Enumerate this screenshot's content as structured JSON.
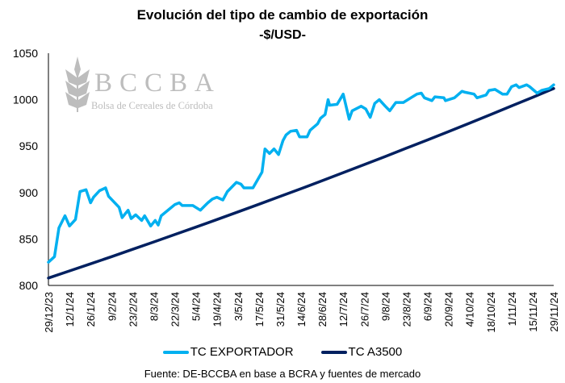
{
  "chart_data": {
    "type": "line",
    "title": "Evolución del tipo de cambio de exportación",
    "subtitle": "-$/USD-",
    "xlabel": "",
    "ylabel": "",
    "ylim": [
      800,
      1050
    ],
    "yticks": [
      800,
      850,
      900,
      950,
      1000,
      1050
    ],
    "xlim_days": [
      0,
      336
    ],
    "x_tick_labels": [
      "29/12/23",
      "12/1/24",
      "26/1/24",
      "9/2/24",
      "23/2/24",
      "8/3/24",
      "22/3/24",
      "5/4/24",
      "19/4/24",
      "3/5/24",
      "17/5/24",
      "31/5/24",
      "14/6/24",
      "28/6/24",
      "12/7/24",
      "26/7/24",
      "9/8/24",
      "23/8/24",
      "6/9/24",
      "20/9/24",
      "4/10/24",
      "18/10/24",
      "1/11/24",
      "15/11/24",
      "29/11/24"
    ],
    "x_unit": "days since 29/12/23",
    "grid": false,
    "legend_position": "bottom",
    "series": [
      {
        "name": "TC EXPORTADOR",
        "color": "#00B0F0",
        "points": [
          [
            0,
            825
          ],
          [
            4,
            831
          ],
          [
            7,
            862
          ],
          [
            11,
            875
          ],
          [
            14,
            864
          ],
          [
            18,
            871
          ],
          [
            21,
            901
          ],
          [
            25,
            903
          ],
          [
            28,
            889
          ],
          [
            30,
            895
          ],
          [
            34,
            902
          ],
          [
            38,
            905
          ],
          [
            40,
            896
          ],
          [
            47,
            884
          ],
          [
            49,
            873
          ],
          [
            53,
            881
          ],
          [
            55,
            872
          ],
          [
            58,
            876
          ],
          [
            62,
            870
          ],
          [
            64,
            875
          ],
          [
            68,
            864
          ],
          [
            71,
            870
          ],
          [
            73,
            865
          ],
          [
            75,
            875
          ],
          [
            84,
            887
          ],
          [
            87,
            889
          ],
          [
            89,
            886
          ],
          [
            96,
            886
          ],
          [
            101,
            881
          ],
          [
            106,
            889
          ],
          [
            109,
            893
          ],
          [
            112,
            895
          ],
          [
            116,
            892
          ],
          [
            119,
            901
          ],
          [
            125,
            911
          ],
          [
            128,
            909
          ],
          [
            130,
            905
          ],
          [
            136,
            905
          ],
          [
            142,
            922
          ],
          [
            144,
            947
          ],
          [
            147,
            942
          ],
          [
            150,
            947
          ],
          [
            153,
            941
          ],
          [
            156,
            956
          ],
          [
            158,
            962
          ],
          [
            161,
            966
          ],
          [
            165,
            967
          ],
          [
            167,
            960
          ],
          [
            172,
            960
          ],
          [
            174,
            967
          ],
          [
            179,
            974
          ],
          [
            181,
            980
          ],
          [
            184,
            984
          ],
          [
            186,
            1000
          ],
          [
            187,
            994
          ],
          [
            192,
            995
          ],
          [
            196,
            1006
          ],
          [
            200,
            979
          ],
          [
            202,
            988
          ],
          [
            208,
            993
          ],
          [
            211,
            990
          ],
          [
            214,
            981
          ],
          [
            217,
            996
          ],
          [
            220,
            1000
          ],
          [
            224,
            993
          ],
          [
            227,
            988
          ],
          [
            231,
            997
          ],
          [
            236,
            997
          ],
          [
            241,
            1002
          ],
          [
            245,
            1006
          ],
          [
            248,
            1007
          ],
          [
            250,
            1002
          ],
          [
            255,
            999
          ],
          [
            257,
            1003
          ],
          [
            263,
            1002
          ],
          [
            264,
            999
          ],
          [
            270,
            1002
          ],
          [
            275,
            1009
          ],
          [
            277,
            1008
          ],
          [
            283,
            1006
          ],
          [
            285,
            1002
          ],
          [
            291,
            1005
          ],
          [
            293,
            1010
          ],
          [
            297,
            1011
          ],
          [
            302,
            1006
          ],
          [
            305,
            1006
          ],
          [
            308,
            1014
          ],
          [
            311,
            1016
          ],
          [
            313,
            1013
          ],
          [
            318,
            1016
          ],
          [
            320,
            1014
          ],
          [
            325,
            1007
          ],
          [
            328,
            1010
          ],
          [
            333,
            1012
          ],
          [
            336,
            1016
          ]
        ]
      },
      {
        "name": "TC A3500",
        "color": "#002060",
        "points": [
          [
            0,
            808.0
          ],
          [
            14,
            815.6
          ],
          [
            28,
            823.3
          ],
          [
            42,
            831.0
          ],
          [
            56,
            838.9
          ],
          [
            70,
            846.8
          ],
          [
            84,
            854.8
          ],
          [
            98,
            862.8
          ],
          [
            112,
            870.9
          ],
          [
            126,
            879.2
          ],
          [
            140,
            887.4
          ],
          [
            154,
            895.8
          ],
          [
            168,
            904.2
          ],
          [
            182,
            912.8
          ],
          [
            196,
            921.4
          ],
          [
            210,
            930.1
          ],
          [
            224,
            938.8
          ],
          [
            238,
            947.7
          ],
          [
            252,
            956.6
          ],
          [
            266,
            965.6
          ],
          [
            280,
            974.7
          ],
          [
            294,
            983.9
          ],
          [
            308,
            993.2
          ],
          [
            322,
            1002.5
          ],
          [
            336,
            1012.0
          ]
        ]
      }
    ],
    "source": "Fuente: DE-BCCBA en base a BCRA y fuentes de mercado"
  },
  "logo": {
    "text": "BCCBA",
    "subtext": "Bolsa de Cereales de Córdoba"
  }
}
